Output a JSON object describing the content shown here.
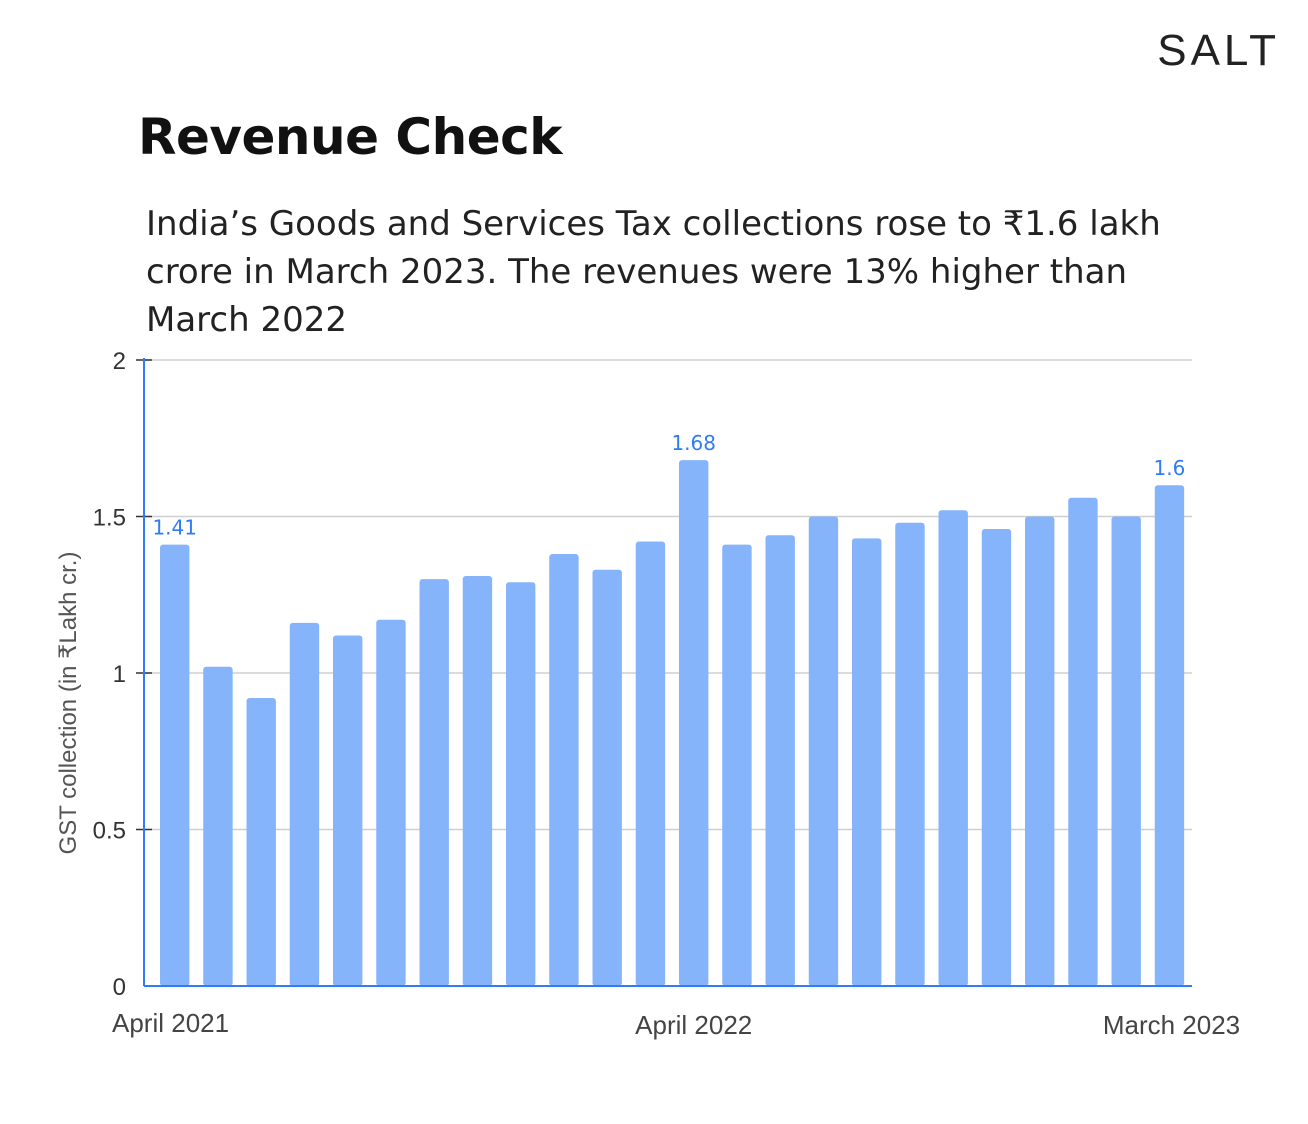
{
  "brand": "SALT",
  "title": "Revenue Check",
  "subtitle": "India’s Goods and Services Tax collections rose to ₹1.6 lakh crore in March 2023. The revenues were 13% higher than March 2022",
  "chart_data": {
    "type": "bar",
    "ylabel": "GST collection (in ₹Lakh cr.)",
    "ylim": [
      0,
      2
    ],
    "yticks": [
      "0",
      "0.5",
      "1",
      "1.5",
      "2"
    ],
    "grid": true,
    "bar_color": "#86b4fb",
    "axis_color": "#2f7cf6",
    "label_color": "#2f7cf6",
    "x_tick_labels": [
      {
        "index": 0,
        "text": "April 2021"
      },
      {
        "index": 12,
        "text": "April 2022"
      },
      {
        "index": 23,
        "text": "March 2023"
      }
    ],
    "values": [
      1.41,
      1.02,
      0.92,
      1.16,
      1.12,
      1.17,
      1.3,
      1.31,
      1.29,
      1.38,
      1.33,
      1.42,
      1.68,
      1.41,
      1.44,
      1.5,
      1.43,
      1.48,
      1.52,
      1.46,
      1.5,
      1.56,
      1.5,
      1.6
    ],
    "data_labels": [
      {
        "index": 0,
        "text": "1.41"
      },
      {
        "index": 12,
        "text": "1.68"
      },
      {
        "index": 23,
        "text": "1.6"
      }
    ]
  }
}
